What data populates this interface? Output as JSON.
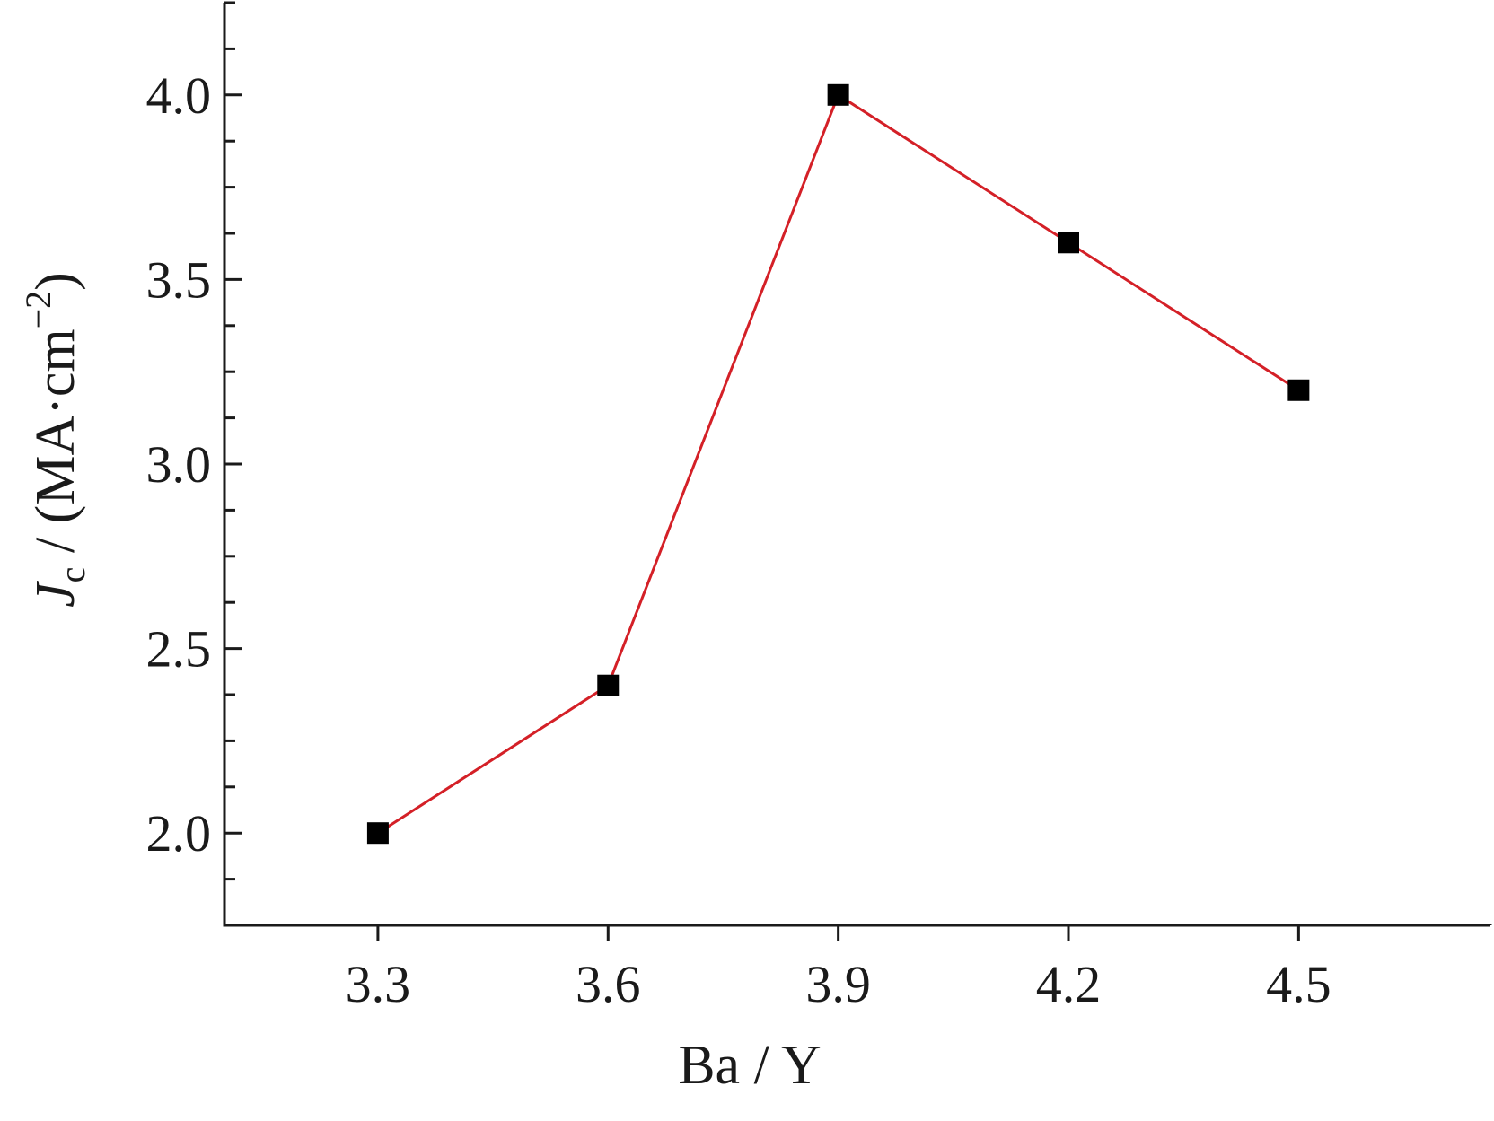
{
  "chart_data": {
    "type": "line",
    "x": [
      3.3,
      3.6,
      3.9,
      4.2,
      4.5
    ],
    "series": [
      {
        "values": [
          2.0,
          2.4,
          4.0,
          3.6,
          3.2
        ]
      }
    ],
    "xlim": [
      3.1,
      4.75
    ],
    "ylim": [
      1.75,
      4.25
    ],
    "x_ticks": [
      "3.3",
      "3.6",
      "3.9",
      "4.2",
      "4.5"
    ],
    "x_tick_values": [
      3.3,
      3.6,
      3.9,
      4.2,
      4.5
    ],
    "y_ticks": [
      "2.0",
      "2.5",
      "3.0",
      "3.5",
      "4.0"
    ],
    "y_tick_values": [
      2.0,
      2.5,
      3.0,
      3.5,
      4.0
    ],
    "y_minor_step": 0.125,
    "xlabel": "Ba / Y",
    "ylabel": {
      "symbol": "J",
      "subscript": "c",
      "text": " / (MA·cm",
      "superscript": "−2",
      "close": ")"
    },
    "grid": false,
    "line_color": "#d42027",
    "marker_color": "#000000",
    "marker": "square"
  }
}
